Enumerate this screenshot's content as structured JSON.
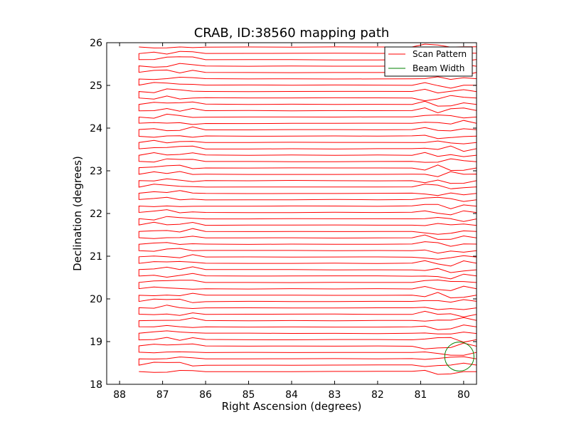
{
  "chart_data": {
    "type": "line",
    "title": "CRAB, ID:38560 mapping path",
    "xlabel": "Right Ascension (degrees)",
    "ylabel": "Declination (degrees)",
    "xlim": [
      88.3,
      79.7
    ],
    "ylim": [
      18,
      26
    ],
    "x_inverted": true,
    "xticks": [
      88,
      87,
      86,
      85,
      84,
      83,
      82,
      81,
      80
    ],
    "yticks": [
      18,
      19,
      20,
      21,
      22,
      23,
      24,
      25,
      26
    ],
    "grid": false,
    "legend_position": "top-right",
    "scan": {
      "ra_east": 87.55,
      "ra_west": 79.7,
      "dec_start": 18.3,
      "dec_end": 25.78,
      "row_count": 26,
      "row_spacing_deg": 0.298
    },
    "beam": {
      "center_ra": 80.1,
      "center_dec": 18.65,
      "radius_deg": 0.34
    },
    "series": [
      {
        "name": "Scan Pattern",
        "color": "#ff0000"
      },
      {
        "name": "Beam Width",
        "color": "#008000"
      }
    ]
  }
}
